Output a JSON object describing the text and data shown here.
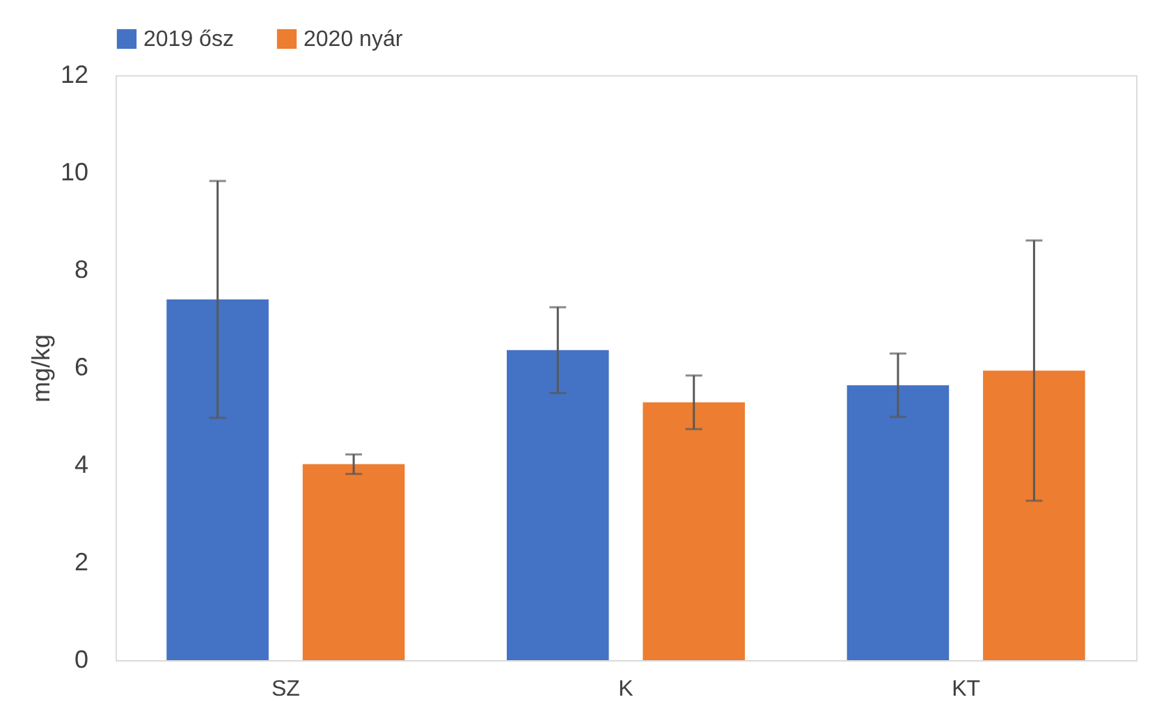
{
  "chart_data": {
    "type": "bar",
    "ylabel": "mg/kg",
    "categories": [
      "SZ",
      "K",
      "KT"
    ],
    "series": [
      {
        "name": "2019 ősz",
        "color": "#4472c4",
        "values": [
          7.4,
          6.36,
          5.64
        ],
        "errors": [
          2.43,
          0.88,
          0.65
        ]
      },
      {
        "name": "2020 nyár",
        "color": "#ed7d31",
        "values": [
          4.02,
          5.29,
          5.94
        ],
        "errors": [
          0.2,
          0.55,
          2.67
        ]
      }
    ],
    "ylim": [
      0,
      12
    ],
    "yticks": [
      0,
      2,
      4,
      6,
      8,
      10,
      12
    ],
    "grid": false,
    "legend": "top"
  }
}
